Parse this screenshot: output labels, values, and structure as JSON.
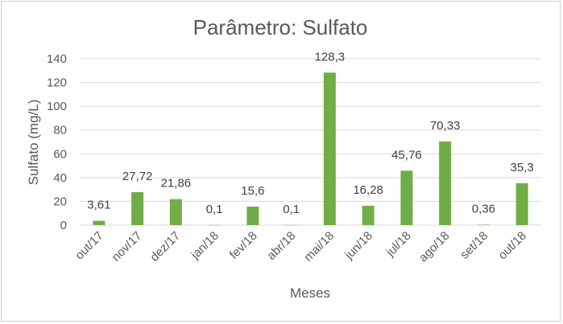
{
  "chart_data": {
    "type": "bar",
    "title": "Parâmetro: Sulfato",
    "xlabel": "Meses",
    "ylabel": "Sulfato (mg/L)",
    "categories": [
      "out/17",
      "nov/17",
      "dez/17",
      "jan/18",
      "fev/18",
      "abr/18",
      "mai/18",
      "jun/18",
      "jul/18",
      "ago/18",
      "set/18",
      "out/18"
    ],
    "values": [
      3.61,
      27.72,
      21.86,
      0.1,
      15.6,
      0.1,
      128.3,
      16.28,
      45.76,
      70.33,
      0.36,
      35.3
    ],
    "data_labels": [
      "3,61",
      "27,72",
      "21,86",
      "0,1",
      "15,6",
      "0,1",
      "128,3",
      "16,28",
      "45,76",
      "70,33",
      "0,36",
      "35,3"
    ],
    "ylim": [
      0,
      140
    ],
    "yticks": [
      0,
      20,
      40,
      60,
      80,
      100,
      120,
      140
    ],
    "grid": true,
    "legend": "none",
    "bar_color": "#70ad47"
  }
}
